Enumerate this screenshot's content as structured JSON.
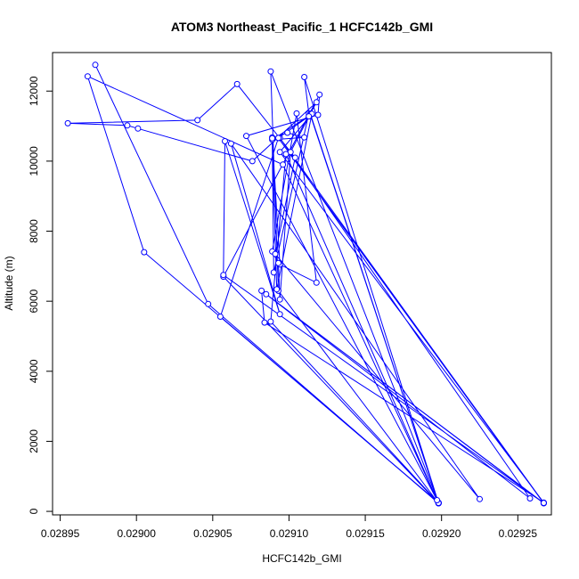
{
  "chart_data": {
    "type": "line",
    "title": "ATOM3 Northeast_Pacific_1 HCFC142b_GMI",
    "xlabel": "HCFC142b_GMI",
    "ylabel": "Altitude (m)",
    "xlim": [
      0.028945,
      0.029272
    ],
    "ylim": [
      -100,
      13100
    ],
    "x_ticks": [
      0.02895,
      0.029,
      0.02905,
      0.0291,
      0.02915,
      0.0292,
      0.02925
    ],
    "x_tick_labels": [
      "0.02895",
      "0.02900",
      "0.02905",
      "0.02910",
      "0.02915",
      "0.02920",
      "0.02925"
    ],
    "y_ticks": [
      0,
      2000,
      4000,
      6000,
      8000,
      10000,
      12000
    ],
    "y_tick_labels": [
      "0",
      "2000",
      "4000",
      "6000",
      "8000",
      "10000",
      "12000"
    ],
    "grid": false,
    "legend": "none",
    "series": [
      {
        "color": "#0000ff",
        "marker": "open-circle",
        "x": [
          0.028973,
          0.029047,
          0.029198,
          0.029096,
          0.028968,
          0.029005,
          0.029198,
          0.029088,
          0.029093,
          0.029198,
          0.029057,
          0.02912,
          0.029119,
          0.029072,
          0.029198,
          0.02911,
          0.029113,
          0.02909,
          0.029089,
          0.029094,
          0.029118,
          0.029105,
          0.029089,
          0.029093,
          0.029094,
          0.029101,
          0.029114,
          0.029198,
          0.029114,
          0.029089,
          0.02911,
          0.029099,
          0.029089,
          0.029092,
          0.029115,
          0.029094,
          0.029267,
          0.029084,
          0.029082,
          0.029267,
          0.029093,
          0.029267,
          0.029094,
          0.029258,
          0.029085,
          0.029267,
          0.029057,
          0.029058,
          0.029094,
          0.029062,
          0.029225,
          0.029091,
          0.029104,
          0.029066,
          0.02904,
          0.028955,
          0.028994,
          0.029001,
          0.029076,
          0.029118,
          0.029113,
          0.029093,
          0.029055,
          0.029198,
          0.029088,
          0.029098,
          0.029197
        ],
        "y": [
          12750,
          5920,
          230,
          9900,
          12420,
          7400,
          250,
          12560,
          6300,
          230,
          6700,
          11900,
          11320,
          10720,
          240,
          12400,
          11360,
          6820,
          10680,
          7050,
          6530,
          11360,
          7420,
          7090,
          6050,
          10260,
          11350,
          240,
          11320,
          10610,
          10680,
          10810,
          10650,
          6340,
          11350,
          10260,
          250,
          5390,
          6300,
          230,
          10660,
          240,
          10660,
          370,
          6200,
          240,
          6750,
          10570,
          5630,
          10500,
          350,
          7350,
          10100,
          12200,
          11170,
          11080,
          11020,
          10930,
          10000,
          11680,
          11280,
          10660,
          5560,
          240,
          5420,
          10200,
          320
        ]
      }
    ]
  }
}
